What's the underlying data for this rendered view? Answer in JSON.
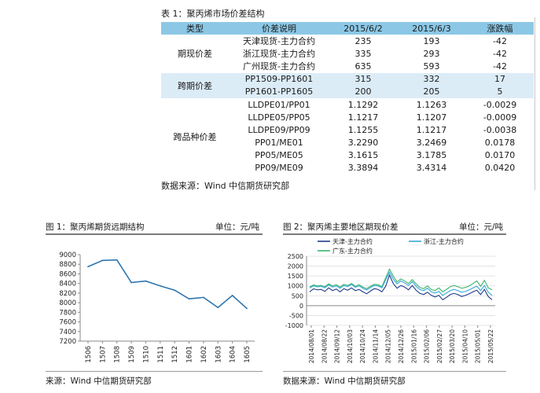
{
  "table": {
    "caption": "表 1：聚丙烯市场价差结构",
    "headers": [
      "类型",
      "价差说明",
      "2015/6/2",
      "2015/6/3",
      "涨跌幅"
    ],
    "groups": [
      {
        "category": "期现价差",
        "highlight": false,
        "rows": [
          [
            "天津现货-主力合约",
            "235",
            "193",
            "-42"
          ],
          [
            "浙江现货-主力合约",
            "335",
            "293",
            "-42"
          ],
          [
            "广州现货-主力合约",
            "635",
            "593",
            "-42"
          ]
        ]
      },
      {
        "category": "跨期价差",
        "highlight": true,
        "rows": [
          [
            "PP1509-PP1601",
            "315",
            "332",
            "17"
          ],
          [
            "PP1601-PP1605",
            "200",
            "205",
            "5"
          ]
        ]
      },
      {
        "category": "跨品种价差",
        "highlight": false,
        "rows": [
          [
            "LLDPE01/PP01",
            "1.1292",
            "1.1263",
            "-0.0029"
          ],
          [
            "LLDPE05/PP05",
            "1.1217",
            "1.1207",
            "-0.0009"
          ],
          [
            "LLDPE09/PP09",
            "1.1255",
            "1.1217",
            "-0.0038"
          ],
          [
            "PP01/ME01",
            "3.2290",
            "3.2469",
            "0.0178"
          ],
          [
            "PP05/ME05",
            "3.1615",
            "3.1785",
            "0.0170"
          ],
          [
            "PP09/ME09",
            "3.3894",
            "3.4314",
            "0.0420"
          ]
        ]
      }
    ],
    "source": "数据来源：Wind  中信期货研究部"
  },
  "figure1": {
    "caption": "图 1：聚丙烯期货远期结构",
    "unit": "单位：元/吨",
    "source": "来源：Wind  中信期货研究部"
  },
  "figure2": {
    "caption": "图 2：聚丙烯主要地区期现价差",
    "unit": "单位：元/吨",
    "source": "数据来源：Wind  中信期货研究部"
  },
  "colors": {
    "header_bg": "#8cc8e6",
    "highlight_bg": "#dcecf7",
    "panel_bg": "#dcecf8",
    "fig1_line": "#2e76b0",
    "tianjin": "#1f3a8a",
    "zhejiang": "#34a9d8",
    "guangdong": "#3cb371"
  },
  "chart_data": [
    {
      "type": "line",
      "categories": [
        "1506",
        "1507",
        "1508",
        "1509",
        "1510",
        "1511",
        "1512",
        "1601",
        "1602",
        "1603",
        "1604",
        "1605"
      ],
      "series": [
        {
          "values": [
            8750,
            8880,
            8890,
            8420,
            8450,
            8350,
            8260,
            8080,
            8110,
            7900,
            8150,
            7880
          ]
        }
      ],
      "ylim": [
        7200,
        9000
      ],
      "yticks": [
        7200,
        7400,
        7600,
        7800,
        8000,
        8200,
        8400,
        8600,
        8800,
        9000
      ],
      "grid": false
    },
    {
      "type": "line",
      "x_ticks": [
        "2014/08/01",
        "2014/08/22",
        "2014/09/12",
        "2014/10/03",
        "2014/10/24",
        "2014/11/14",
        "2014/12/05",
        "2014/12/26",
        "2015/01/16",
        "2015/02/06",
        "2015/02/27",
        "2015/03/20",
        "2015/04/10",
        "2015/05/01",
        "2015/05/22"
      ],
      "ylim": [
        -1000,
        2500
      ],
      "yticks": [
        -1000,
        -500,
        0,
        500,
        1000,
        1500,
        2000,
        2500
      ],
      "legend": "top",
      "series": [
        {
          "name": "天津-主力合约",
          "values": [
            700,
            850,
            800,
            820,
            720,
            900,
            760,
            840,
            700,
            860,
            780,
            900,
            760,
            820,
            700,
            600,
            740,
            860,
            820,
            700,
            980,
            1550,
            1120,
            880,
            1020,
            940,
            800,
            1020,
            780,
            620,
            560,
            680,
            520,
            440,
            520,
            300,
            420,
            560,
            620,
            560,
            460,
            520,
            600,
            700,
            780,
            560,
            820,
            460,
            300
          ]
        },
        {
          "name": "浙江-主力合约",
          "values": [
            900,
            1000,
            950,
            980,
            900,
            1050,
            940,
            1000,
            880,
            1020,
            960,
            1080,
            930,
            1000,
            880,
            790,
            920,
            1020,
            1000,
            900,
            1300,
            1700,
            1350,
            1100,
            1250,
            1150,
            1020,
            1220,
            980,
            820,
            760,
            880,
            700,
            640,
            720,
            520,
            640,
            760,
            820,
            760,
            680,
            720,
            800,
            900,
            980,
            760,
            1020,
            680,
            520
          ]
        },
        {
          "name": "广东-主力合约",
          "values": [
            950,
            1050,
            1000,
            1020,
            960,
            1100,
            1000,
            1060,
            940,
            1080,
            1020,
            1120,
            980,
            1060,
            940,
            860,
            980,
            1080,
            1060,
            960,
            1400,
            1850,
            1500,
            1200,
            1350,
            1250,
            1120,
            1320,
            1100,
            920,
            860,
            1000,
            820,
            760,
            900,
            700,
            820,
            960,
            1020,
            960,
            880,
            920,
            1000,
            1120,
            1250,
            980,
            1280,
            900,
            800
          ]
        }
      ],
      "grid": true
    }
  ]
}
